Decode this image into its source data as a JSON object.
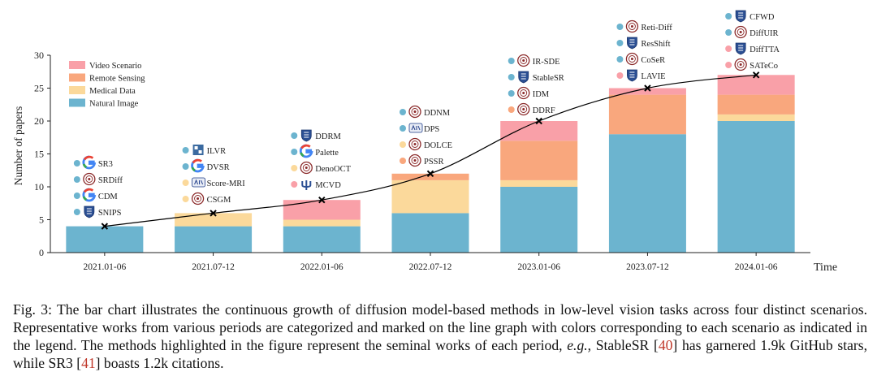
{
  "chart_data": {
    "type": "bar",
    "stacked": true,
    "title": "",
    "xlabel": "Time",
    "ylabel": "Number of papers",
    "ylim": [
      0,
      30
    ],
    "yticks": [
      0,
      5,
      10,
      15,
      20,
      25,
      30
    ],
    "grid": false,
    "legend_position": "top-left",
    "categories": [
      "2021.01-06",
      "2021.07-12",
      "2022.01-06",
      "2022.07-12",
      "2023.01-06",
      "2023.07-12",
      "2024.01-06"
    ],
    "series": [
      {
        "name": "Natural Image",
        "color": "#6cb4cf",
        "values": [
          4,
          4,
          4,
          6,
          10,
          18,
          20
        ]
      },
      {
        "name": "Medical Data",
        "color": "#fbd99b",
        "values": [
          0,
          2,
          1,
          5,
          1,
          0,
          1
        ]
      },
      {
        "name": "Remote Sensing",
        "color": "#f9a77d",
        "values": [
          0,
          0,
          0,
          1,
          6,
          6,
          3
        ]
      },
      {
        "name": "Video Scenario",
        "color": "#f9a0a8",
        "values": [
          0,
          0,
          3,
          0,
          3,
          1,
          3
        ]
      }
    ],
    "legend_order": [
      "Video Scenario",
      "Remote Sensing",
      "Medical Data",
      "Natural Image"
    ],
    "trend_line": {
      "values": [
        4,
        6,
        8,
        12,
        20,
        25,
        27
      ],
      "color": "#000000",
      "marker": "x"
    },
    "annotations": [
      {
        "category": "2021.01-06",
        "works": [
          {
            "name": "SR3",
            "scenario": "Natural Image",
            "logo": "google-logo"
          },
          {
            "name": "SRDiff",
            "scenario": "Natural Image",
            "logo": "university-seal-logo"
          },
          {
            "name": "CDM",
            "scenario": "Natural Image",
            "logo": "google-logo"
          },
          {
            "name": "SNIPS",
            "scenario": "Natural Image",
            "logo": "shield-logo"
          }
        ]
      },
      {
        "category": "2021.07-12",
        "works": [
          {
            "name": "ILVR",
            "scenario": "Natural Image",
            "logo": "institute-logo"
          },
          {
            "name": "DVSR",
            "scenario": "Natural Image",
            "logo": "google-logo"
          },
          {
            "name": "Score-MRI",
            "scenario": "Medical Data",
            "logo": "kaist-logo"
          },
          {
            "name": "CSGM",
            "scenario": "Medical Data",
            "logo": "university-seal-logo"
          }
        ]
      },
      {
        "category": "2022.01-06",
        "works": [
          {
            "name": "DDRM",
            "scenario": "Natural Image",
            "logo": "shield-logo"
          },
          {
            "name": "Palette",
            "scenario": "Natural Image",
            "logo": "google-logo"
          },
          {
            "name": "DenoOCT",
            "scenario": "Medical Data",
            "logo": "university-seal-logo"
          },
          {
            "name": "MCVD",
            "scenario": "Video Scenario",
            "logo": "trident-logo"
          }
        ]
      },
      {
        "category": "2022.07-12",
        "works": [
          {
            "name": "DDNM",
            "scenario": "Natural Image",
            "logo": "university-seal-logo"
          },
          {
            "name": "DPS",
            "scenario": "Natural Image",
            "logo": "kaist-logo"
          },
          {
            "name": "DOLCE",
            "scenario": "Medical Data",
            "logo": "university-seal-logo"
          },
          {
            "name": "PSSR",
            "scenario": "Remote Sensing",
            "logo": "university-seal-logo"
          }
        ]
      },
      {
        "category": "2023.01-06",
        "works": [
          {
            "name": "IR-SDE",
            "scenario": "Natural Image",
            "logo": "university-seal-logo"
          },
          {
            "name": "StableSR",
            "scenario": "Natural Image",
            "logo": "shield-logo"
          },
          {
            "name": "IDM",
            "scenario": "Natural Image",
            "logo": "university-seal-logo"
          },
          {
            "name": "DDRF",
            "scenario": "Remote Sensing",
            "logo": "university-seal-logo"
          }
        ]
      },
      {
        "category": "2023.07-12",
        "works": [
          {
            "name": "Reti-Diff",
            "scenario": "Natural Image",
            "logo": "university-seal-logo"
          },
          {
            "name": "ResShift",
            "scenario": "Natural Image",
            "logo": "shield-logo"
          },
          {
            "name": "CoSeR",
            "scenario": "Natural Image",
            "logo": "university-seal-logo"
          },
          {
            "name": "LAVIE",
            "scenario": "Video Scenario",
            "logo": "shield-logo"
          }
        ]
      },
      {
        "category": "2024.01-06",
        "works": [
          {
            "name": "CFWD",
            "scenario": "Natural Image",
            "logo": "shield-logo"
          },
          {
            "name": "DiffUIR",
            "scenario": "Natural Image",
            "logo": "university-seal-logo"
          },
          {
            "name": "DiffTTA",
            "scenario": "Video Scenario",
            "logo": "shield-logo"
          },
          {
            "name": "SATeCo",
            "scenario": "Video Scenario",
            "logo": "university-seal-logo"
          }
        ]
      }
    ]
  },
  "caption": {
    "part1": "Fig. 3: The bar chart illustrates the continuous growth of diffusion model-based methods in low-level vision tasks across four distinct scenarios. Representative works from various periods are categorized and marked on the line graph with colors corresponding to each scenario as indicated in the legend. The methods highlighted in the figure represent the seminal works of each period, ",
    "eg": "e.g.",
    "part2": ", StableSR [",
    "ref1": "40",
    "part3": "] has garnered 1.9k GitHub stars, while SR3 [",
    "ref2": "41",
    "part4": "] boasts 1.2k citations."
  }
}
